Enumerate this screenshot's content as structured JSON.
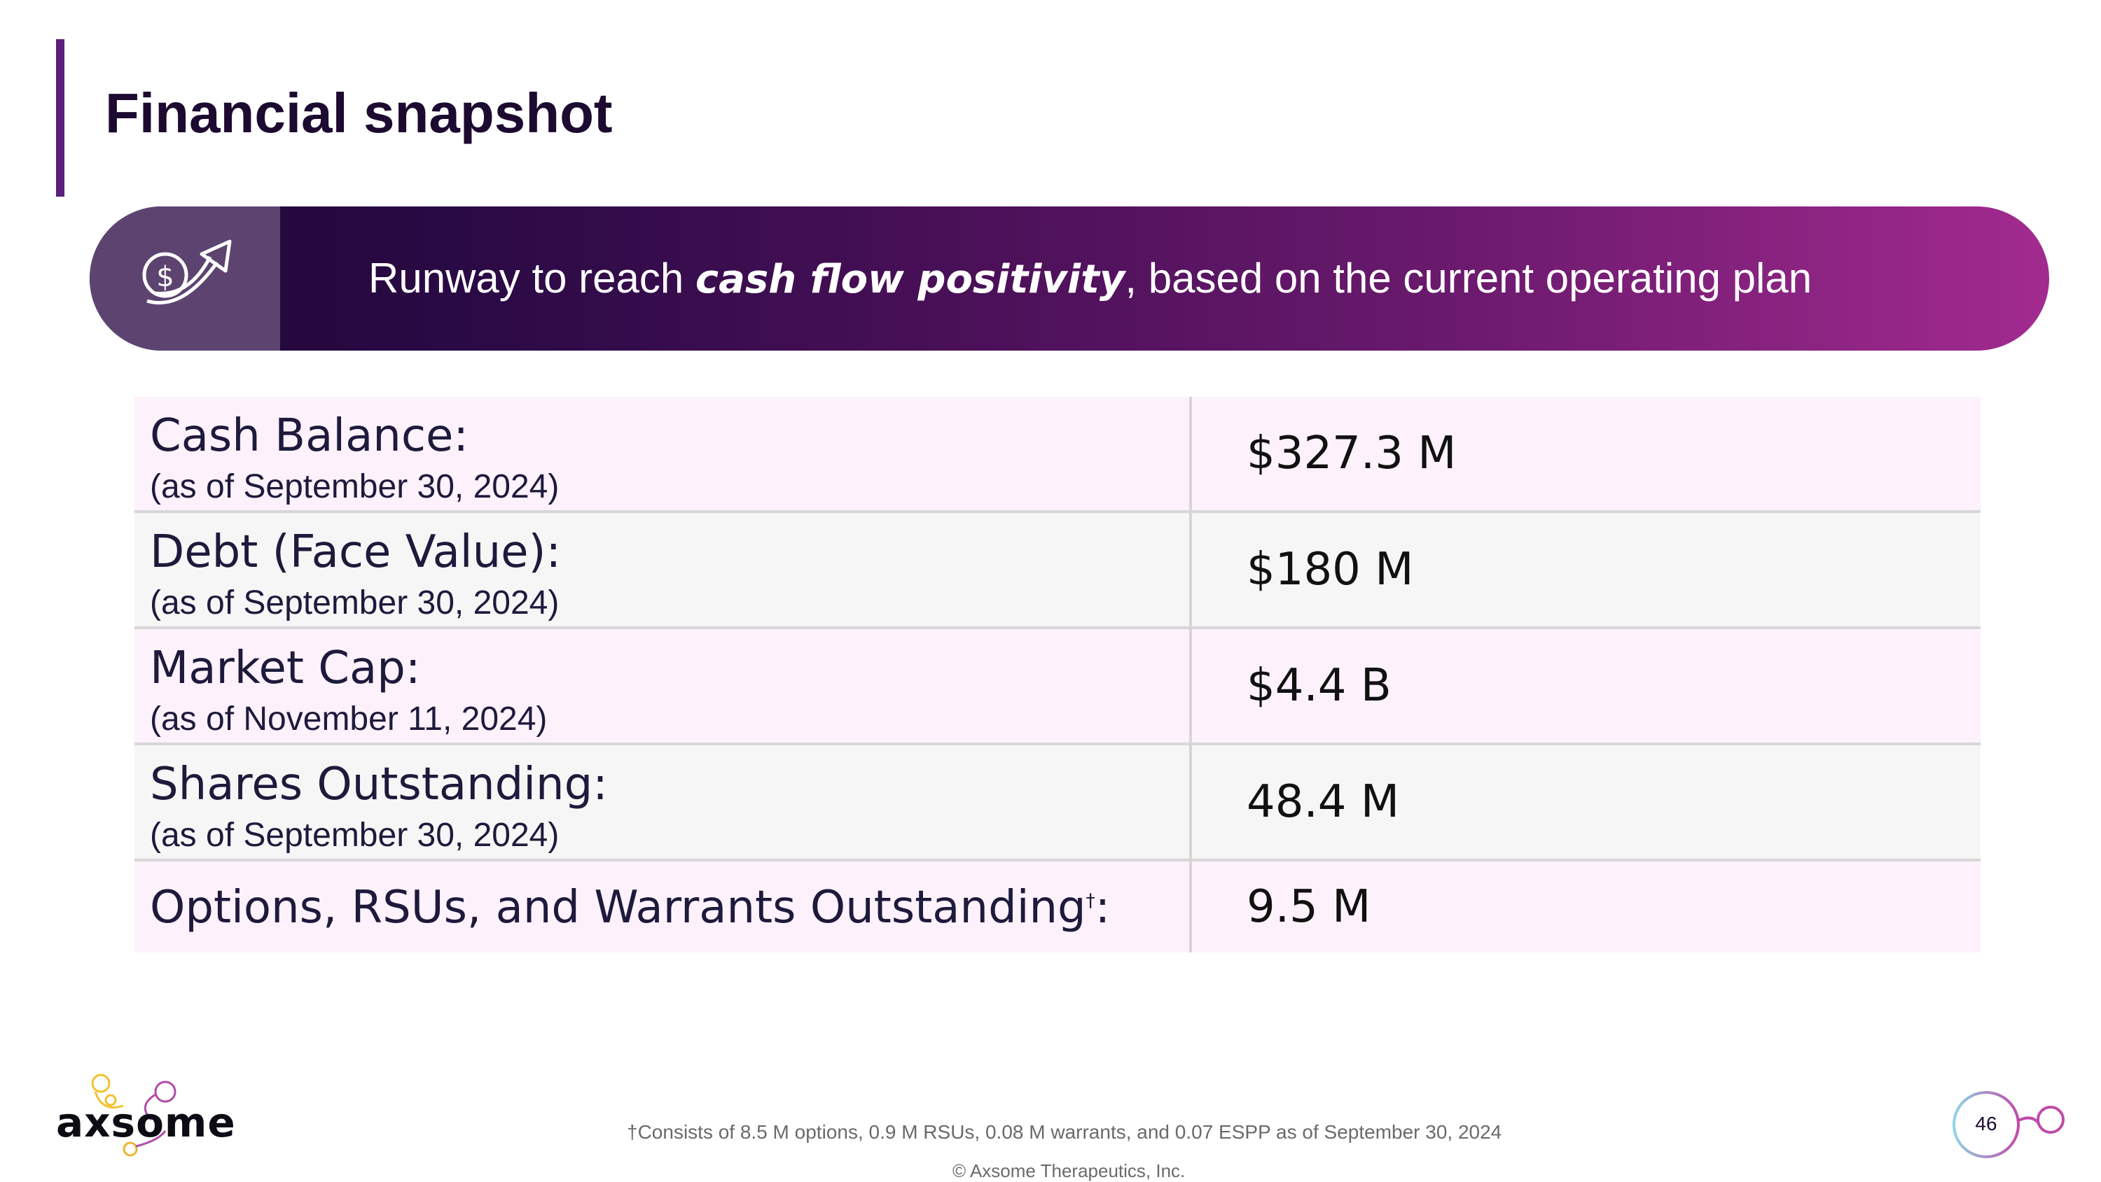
{
  "slide": {
    "title": "Financial snapshot",
    "page_number": "46"
  },
  "banner": {
    "icon": "money-growth-arrow-icon",
    "text_before": "Runway to reach ",
    "text_emphasis": "cash flow positivity",
    "text_after": ", based on the current operating plan"
  },
  "table": {
    "rows": [
      {
        "label": "Cash Balance:",
        "sublabel": "(as of September 30, 2024)",
        "value": "$327.3 M"
      },
      {
        "label": "Debt (Face Value):",
        "sublabel": "(as of September 30, 2024)",
        "value": "$180 M"
      },
      {
        "label": "Market Cap:",
        "sublabel": "(as of November 11, 2024)",
        "value": "$4.4 B"
      },
      {
        "label": "Shares Outstanding:",
        "sublabel": "(as of September 30, 2024)",
        "value": "48.4 M"
      },
      {
        "label": "Options, RSUs, and Warrants Outstanding",
        "dagger": "†",
        "label_suffix": ":",
        "value": "9.5 M"
      }
    ]
  },
  "footer": {
    "logo_text": "axsome",
    "footnote": "†Consists of 8.5 M options, 0.9 M RSUs, 0.08 M warrants, and 0.07 ESPP as of September 30, 2024",
    "copyright": "© Axsome Therapeutics, Inc."
  },
  "colors": {
    "accent": "#5a1f78",
    "banner_start": "#1f0535",
    "banner_end": "#a22a8f",
    "row_pink": "#fdf2fb",
    "row_gray": "#f6f6f6"
  }
}
